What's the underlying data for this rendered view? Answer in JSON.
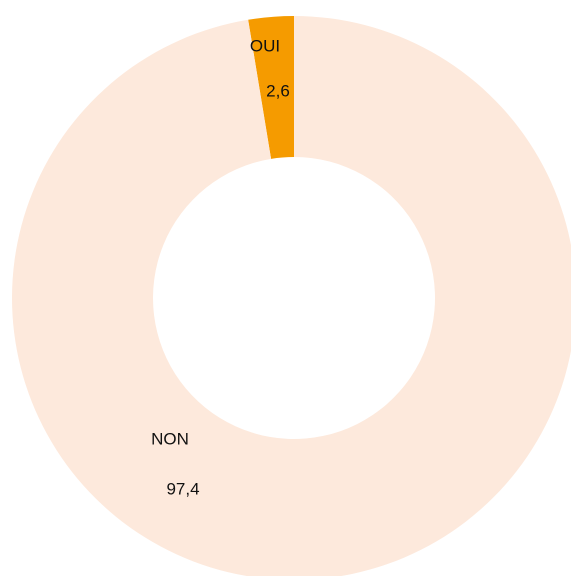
{
  "chart_data": {
    "type": "donut",
    "categories": [
      "OUI",
      "NON"
    ],
    "values": [
      2.6,
      97.4
    ],
    "value_labels": [
      "2,6",
      "97,4"
    ],
    "colors": [
      "#f59b00",
      "#fde9dc"
    ]
  }
}
